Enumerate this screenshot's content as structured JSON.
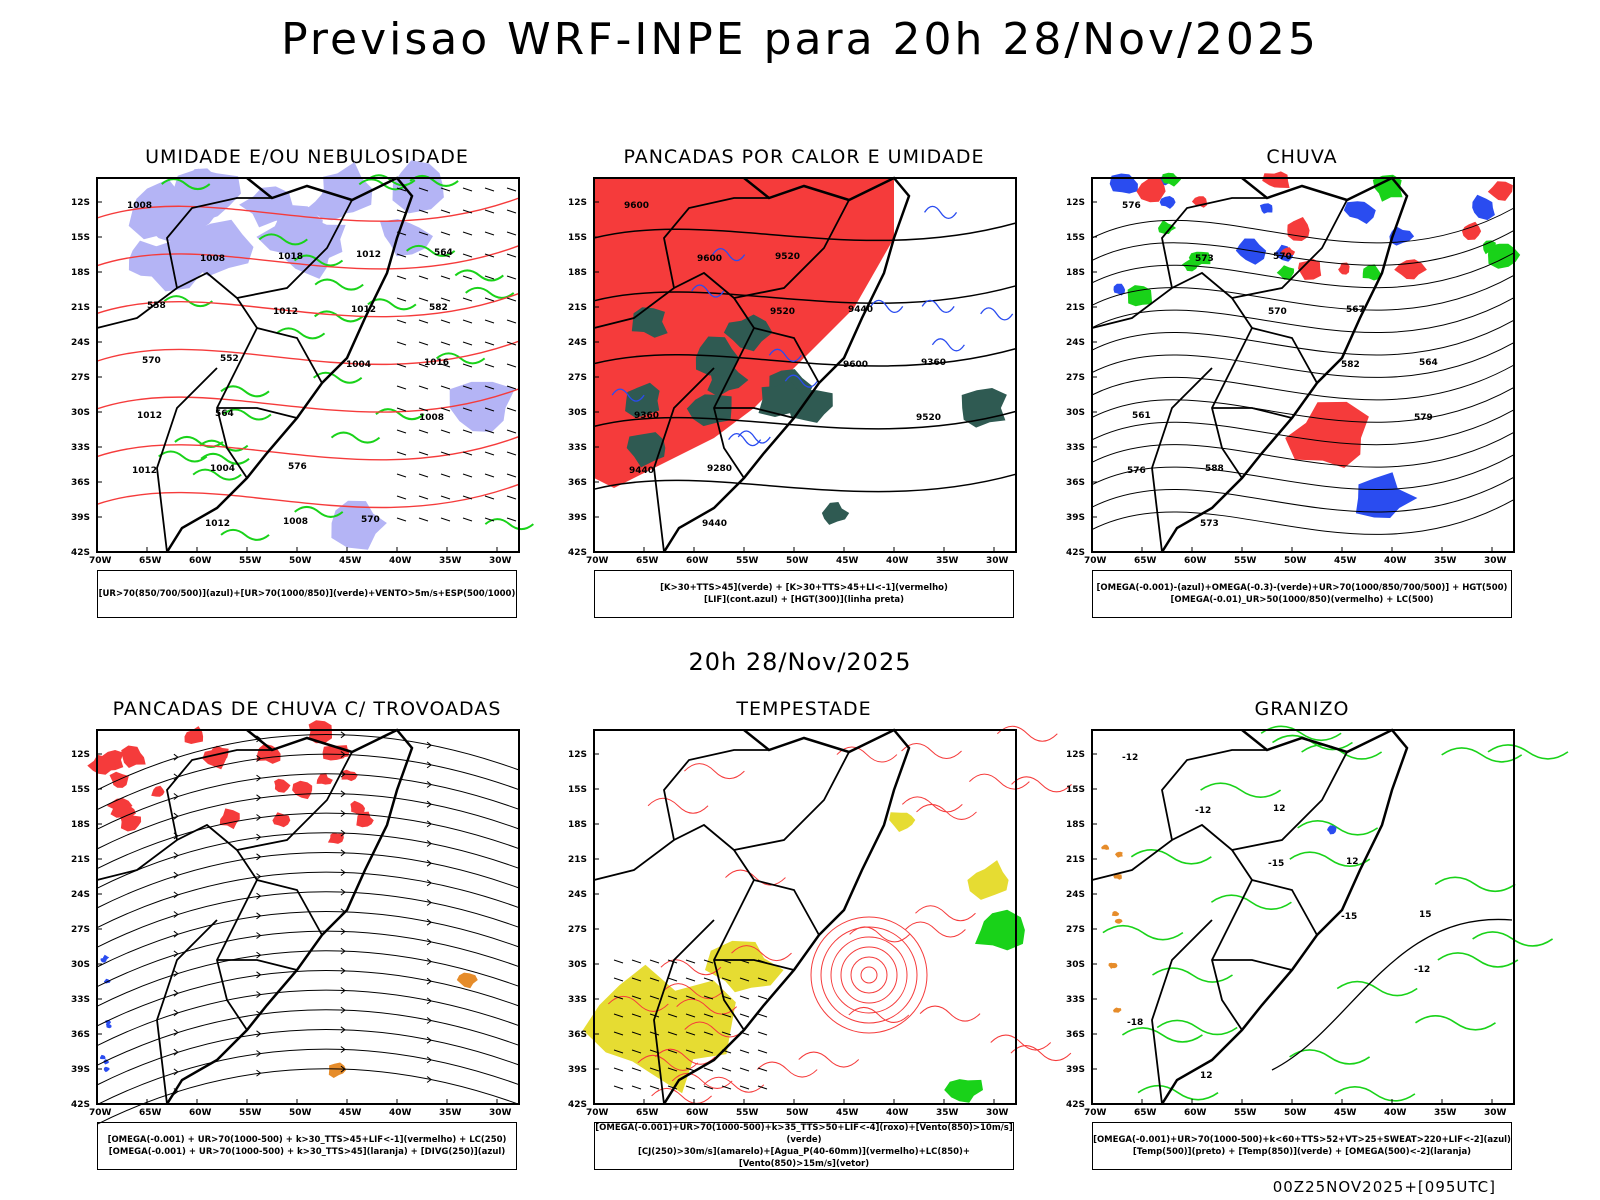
{
  "main_title": "Previsao WRF-INPE  para 20h 28/Nov/2025",
  "middle_subtitle": "20h 28/Nov/2025",
  "footer": "00Z25NOV2025+[095UTC]",
  "axes": {
    "lat_labels": [
      "12S",
      "15S",
      "18S",
      "21S",
      "24S",
      "27S",
      "30S",
      "33S",
      "36S",
      "39S",
      "42S"
    ],
    "lon_labels": [
      "70W",
      "65W",
      "60W",
      "55W",
      "50W",
      "45W",
      "40W",
      "35W",
      "30W"
    ]
  },
  "panels": [
    {
      "title": "UMIDADE E/OU NEBULOSIDADE",
      "legend": [
        "[UR>70(850/700/500)](azul)+[UR>70(1000/850)](verde)+VENTO>5m/s+ESP(500/1000)"
      ],
      "contour_labels": [
        "1008",
        "1008",
        "1012",
        "1004",
        "1008",
        "1012",
        "1012",
        "1018",
        "1012",
        "1016",
        "1012",
        "1004",
        "1008",
        "1012",
        "582",
        "570",
        "564",
        "576",
        "570",
        "564",
        "558",
        "552"
      ]
    },
    {
      "title": "PANCADAS POR CALOR E UMIDADE",
      "legend": [
        "[K>30+TTS>45](verde) + [K>30+TTS>45+LI<-1](vermelho)",
        "[LIF](cont.azul) + [HGT(300)](linha preta)"
      ],
      "contour_labels": [
        "9600",
        "9600",
        "9520",
        "9600",
        "9520",
        "9440",
        "9440",
        "9520",
        "9440",
        "9360",
        "9360",
        "9280"
      ]
    },
    {
      "title": "CHUVA",
      "legend": [
        "[OMEGA(-0.001)-(azul)+OMEGA(-0.3)-(verde)+UR>70(1000/850/700/500)] + HGT(500)",
        "[OMEGA(-0.01)_UR>50(1000/850)(vermelho) + LC(500)"
      ],
      "contour_labels": [
        "576",
        "573",
        "570",
        "582",
        "579",
        "576",
        "573",
        "570",
        "567",
        "564",
        "561",
        "588"
      ]
    },
    {
      "title": "PANCADAS DE CHUVA C/ TROVOADAS",
      "legend": [
        "[OMEGA(-0.001) + UR>70(1000-500) + k>30_TTS>45+LIF<-1](vermelho) + LC(250)",
        "[OMEGA(-0.001) + UR>70(1000-500) + k>30_TTS>45](laranja) + [DIVG(250)](azul)"
      ],
      "contour_labels": []
    },
    {
      "title": "TEMPESTADE",
      "legend": [
        "[OMEGA(-0.001)+UR>70(1000-500)+k>35_TTS>50+LIF<-4](roxo)+[Vento(850)>10m/s](verde)",
        "[CJ(250)>30m/s](amarelo)+[Agua_P(40-60mm)](vermelho)+LC(850)+[Vento(850)>15m/s](vetor)"
      ],
      "contour_labels": []
    },
    {
      "title": "GRANIZO",
      "legend": [
        "[OMEGA(-0.001)+UR>70(1000-500)+k<60+TTS>52+VT>25+SWEAT>220+LIF<-2](azul)",
        "[Temp(500)](preto) + [Temp(850)](verde) + [OMEGA(500)<-2](laranja)"
      ],
      "contour_labels": [
        "-12",
        "-12",
        "-15",
        "-15",
        "-12",
        "-18",
        "12",
        "12",
        "12",
        "15"
      ]
    }
  ],
  "colors": {
    "red": "#f53b3b",
    "green": "#19d219",
    "blue": "#2a4cf0",
    "lavender": "#b4b4f5",
    "darkgreen": "#2f5a52",
    "yellow": "#e6dc32",
    "orange": "#e68c2a",
    "purple": "#a020f0"
  }
}
